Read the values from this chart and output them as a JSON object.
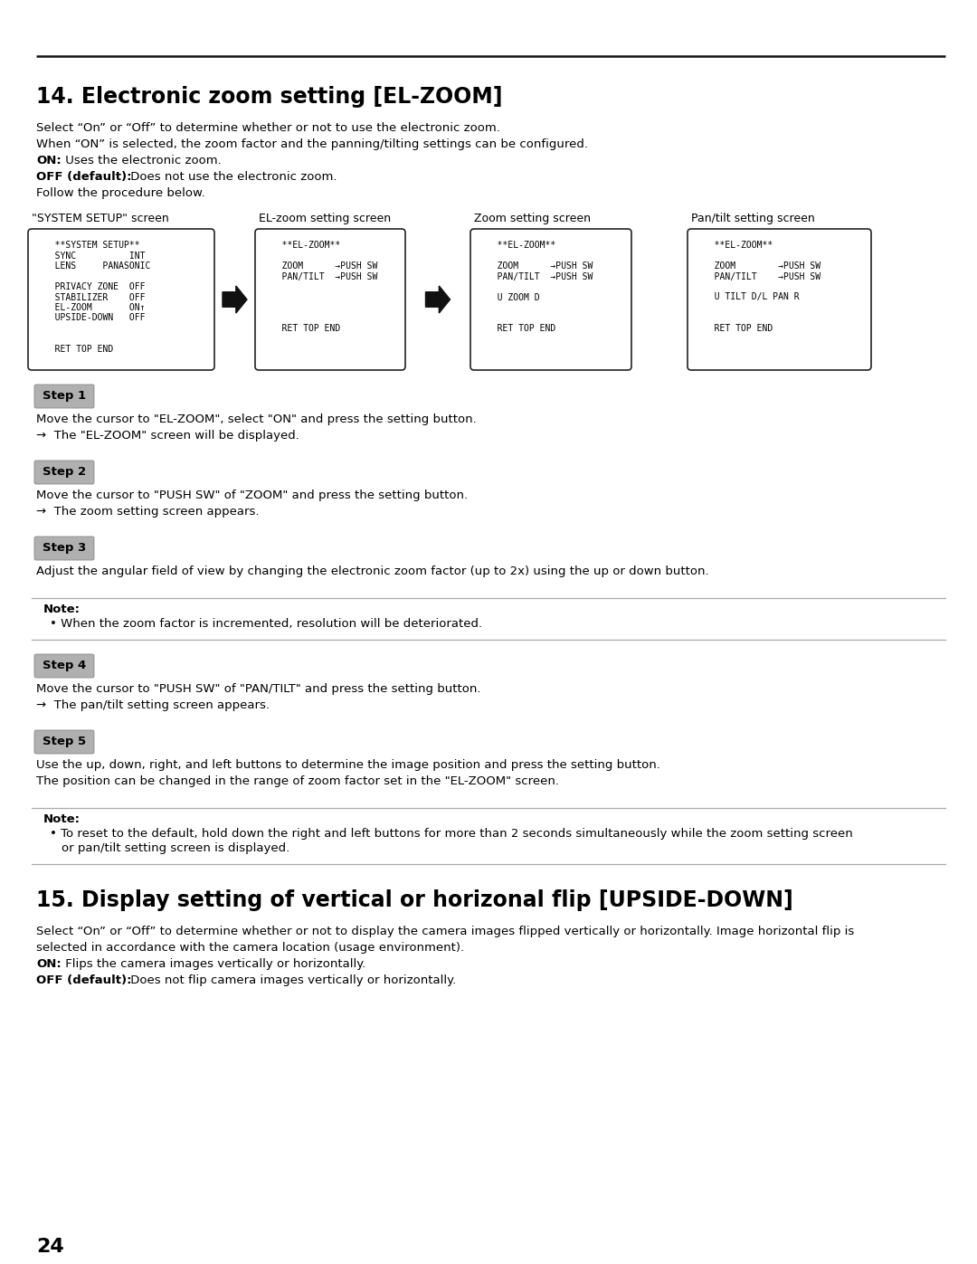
{
  "page_number": "24",
  "section14_title": "14. Electronic zoom setting [EL-ZOOM]",
  "section14_intro_plain": [
    "Select “On” or “Off” to determine whether or not to use the electronic zoom.",
    "When “ON” is selected, the zoom factor and the panning/tilting settings can be configured."
  ],
  "section14_on": "ON:",
  "section14_on_text": " Uses the electronic zoom.",
  "section14_off": "OFF (default):",
  "section14_off_text": " Does not use the electronic zoom.",
  "section14_follow": "Follow the procedure below.",
  "screen_labels": [
    "\"SYSTEM SETUP\" screen",
    "EL-zoom setting screen",
    "Zoom setting screen",
    "Pan/tilt setting screen"
  ],
  "screen1_lines": [
    "   **SYSTEM SETUP**",
    "   SYNC          INT",
    "   LENS     PANASONIC",
    "",
    "   PRIVACY ZONE  OFF",
    "   STABILIZER    OFF",
    "   EL-ZOOM       ON↑",
    "   UPSIDE-DOWN   OFF",
    "",
    "",
    "   RET TOP END"
  ],
  "screen2_lines": [
    "   **EL-ZOOM**",
    "",
    "   ZOOM      →PUSH SW",
    "   PAN/TILT  →PUSH SW",
    "",
    "",
    "",
    "",
    "   RET TOP END"
  ],
  "screen3_lines": [
    "   **EL-ZOOM**",
    "",
    "   ZOOM      →PUSH SW",
    "   PAN/TILT  →PUSH SW",
    "",
    "   U ZOOM D",
    "",
    "",
    "   RET TOP END"
  ],
  "screen4_lines": [
    "   **EL-ZOOM**",
    "",
    "   ZOOM        →PUSH SW",
    "   PAN/TILT    →PUSH SW",
    "",
    "   U TILT D/L PAN R",
    "",
    "",
    "   RET TOP END"
  ],
  "steps": [
    {
      "label": "Step 1",
      "lines": [
        "Move the cursor to \"EL-ZOOM\", select \"ON\" and press the setting button.",
        "→  The \"EL-ZOOM\" screen will be displayed."
      ]
    },
    {
      "label": "Step 2",
      "lines": [
        "Move the cursor to \"PUSH SW\" of \"ZOOM\" and press the setting button.",
        "→  The zoom setting screen appears."
      ]
    },
    {
      "label": "Step 3",
      "lines": [
        "Adjust the angular field of view by changing the electronic zoom factor (up to 2x) using the up or down button."
      ]
    },
    {
      "label": "Step 4",
      "lines": [
        "Move the cursor to \"PUSH SW\" of \"PAN/TILT\" and press the setting button.",
        "→  The pan/tilt setting screen appears."
      ]
    },
    {
      "label": "Step 5",
      "lines": [
        "Use the up, down, right, and left buttons to determine the image position and press the setting button.",
        "The position can be changed in the range of zoom factor set in the \"EL-ZOOM\" screen."
      ]
    }
  ],
  "note1_header": "Note:",
  "note1_bullet": "When the zoom factor is incremented, resolution will be deteriorated.",
  "note2_header": "Note:",
  "note2_bullet1": "To reset to the default, hold down the right and left buttons for more than 2 seconds simultaneously while the zoom setting screen",
  "note2_bullet2": "or pan/tilt setting screen is displayed.",
  "section15_title": "15. Display setting of vertical or horizonal flip [UPSIDE-DOWN]",
  "section15_intro1": "Select “On” or “Off” to determine whether or not to display the camera images flipped vertically or horizontally. Image horizontal flip is",
  "section15_intro2": "selected in accordance with the camera location (usage environment).",
  "section15_on": "ON:",
  "section15_on_text": " Flips the camera images vertically or horizontally.",
  "section15_off": "OFF (default):",
  "section15_off_text": " Does not flip camera images vertically or horizontally.",
  "bg_color": "#ffffff",
  "text_color": "#000000",
  "step_bg": "#b0b0b0",
  "screen_border": "#222222"
}
